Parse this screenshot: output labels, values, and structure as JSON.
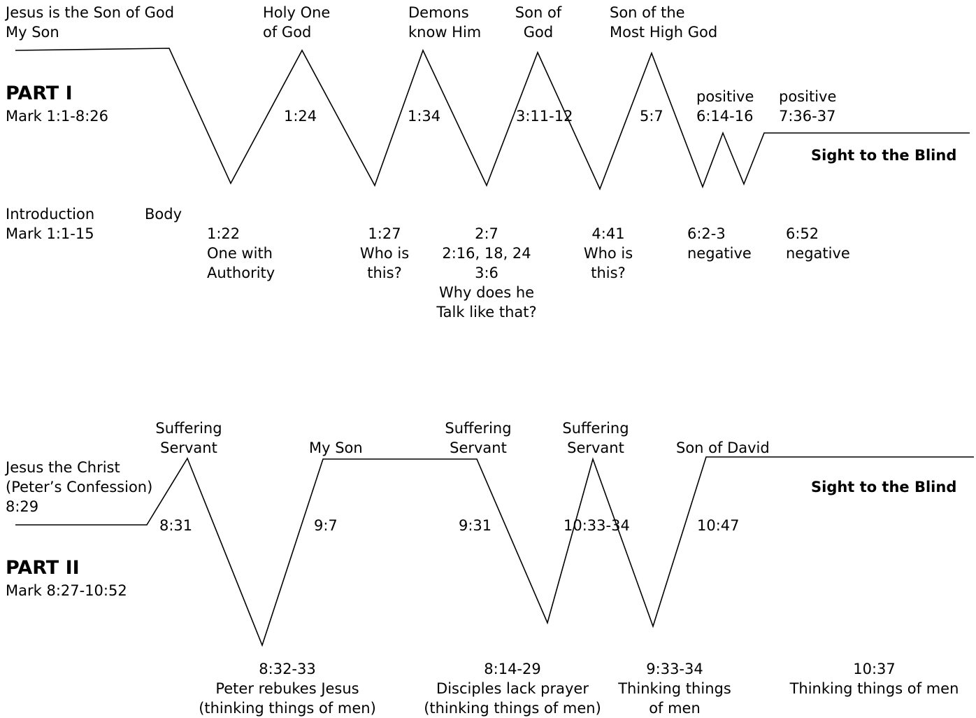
{
  "part1": {
    "title": "PART I",
    "range": "Mark 1:1-8:26",
    "theme_line1": "Jesus is the Son of God",
    "theme_line2": "My Son",
    "intro": "Introduction",
    "intro_range": "Mark 1:1-15",
    "body": "Body",
    "sight": "Sight to the Blind",
    "peaks": [
      {
        "title": "Holy One\nof God",
        "ref": "1:24"
      },
      {
        "title": "Demons\nknow Him",
        "ref": "1:34"
      },
      {
        "title": "Son of\nGod",
        "ref": "3:11-12"
      },
      {
        "title": "Son of the\nMost High God",
        "ref": "5:7"
      },
      {
        "title": "positive\n6:14-16"
      },
      {
        "title": "positive\n7:36-37"
      }
    ],
    "valleys": [
      {
        "text": "1:22\nOne with\nAuthority"
      },
      {
        "text": "1:27\nWho is\nthis?"
      },
      {
        "text": "2:7\n2:16, 18, 24\n3:6\nWhy does he\nTalk like that?"
      },
      {
        "text": "4:41\nWho is\nthis?"
      },
      {
        "text": "6:2-3\nnegative"
      },
      {
        "text": "6:52\nnegative"
      }
    ]
  },
  "part2": {
    "title": "PART II",
    "range": "Mark 8:27-10:52",
    "confession_line1": "Jesus the Christ",
    "confession_line2": "(Peter’s Confession)",
    "confession_ref": "8:29",
    "sight": "Sight to the Blind",
    "peaks": [
      {
        "title": "Suffering\nServant",
        "ref": "8:31"
      },
      {
        "title": "My Son",
        "ref": "9:7"
      },
      {
        "title": "Suffering\nServant",
        "ref": "9:31"
      },
      {
        "title": "Suffering\nServant",
        "ref": "10:33-34"
      },
      {
        "title": "Son of David",
        "ref": "10:47"
      }
    ],
    "valleys": [
      {
        "text": "8:32-33\nPeter rebukes Jesus\n(thinking things of men)"
      },
      {
        "text": "8:14-29\nDisciples lack prayer\n(thinking things of men)"
      },
      {
        "text": "9:33-34\nThinking things\nof men"
      },
      {
        "text": "10:37\nThinking things of men"
      }
    ]
  },
  "colors": {
    "line": "#000000",
    "text": "#000000",
    "background": "#ffffff"
  }
}
